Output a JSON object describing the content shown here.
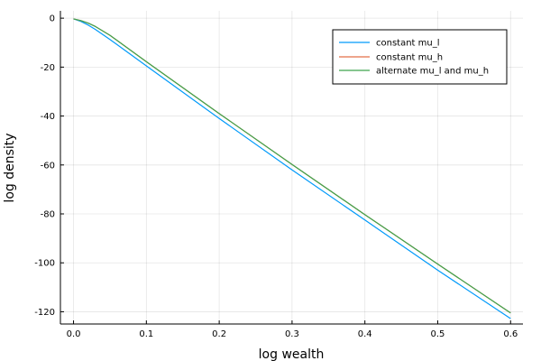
{
  "chart_data": {
    "type": "line",
    "title": "",
    "xlabel": "log wealth",
    "ylabel": "log density",
    "xlim": [
      -0.018,
      0.617
    ],
    "ylim": [
      -125,
      3
    ],
    "xticks": [
      "0.0",
      "0.1",
      "0.2",
      "0.3",
      "0.4",
      "0.5",
      "0.6"
    ],
    "xtick_values": [
      0,
      0.1,
      0.2,
      0.3,
      0.4,
      0.5,
      0.6
    ],
    "yticks": [
      "0",
      "-20",
      "-40",
      "-60",
      "-80",
      "-100",
      "-120"
    ],
    "ytick_values": [
      0,
      -20,
      -40,
      -60,
      -80,
      -100,
      -120
    ],
    "grid": true,
    "legend_position": "top-right",
    "series": [
      {
        "name": "constant mu_l",
        "color": "#009AFA",
        "x": [
          0,
          0.01,
          0.02,
          0.03,
          0.05,
          0.1,
          0.2,
          0.3,
          0.4,
          0.5,
          0.6
        ],
        "y": [
          -0.3,
          -1.3,
          -2.8,
          -4.6,
          -8.7,
          -19.5,
          -41,
          -62,
          -82.5,
          -103,
          -122.8
        ]
      },
      {
        "name": "constant mu_h",
        "color": "#E36F47",
        "x": [
          0,
          0.01,
          0.02,
          0.03,
          0.05,
          0.1,
          0.2,
          0.3,
          0.4,
          0.5,
          0.6
        ],
        "y": [
          -0.3,
          -1.0,
          -2.0,
          -3.4,
          -7.0,
          -17.8,
          -39,
          -59.8,
          -80.3,
          -100.5,
          -120.5
        ]
      },
      {
        "name": "alternate mu_l and mu_h",
        "color": "#3EA44E",
        "x": [
          0,
          0.01,
          0.02,
          0.03,
          0.05,
          0.1,
          0.2,
          0.3,
          0.4,
          0.5,
          0.6
        ],
        "y": [
          -0.3,
          -1.0,
          -2.0,
          -3.4,
          -7.0,
          -17.8,
          -39,
          -59.8,
          -80.3,
          -100.5,
          -120.5
        ]
      }
    ]
  }
}
